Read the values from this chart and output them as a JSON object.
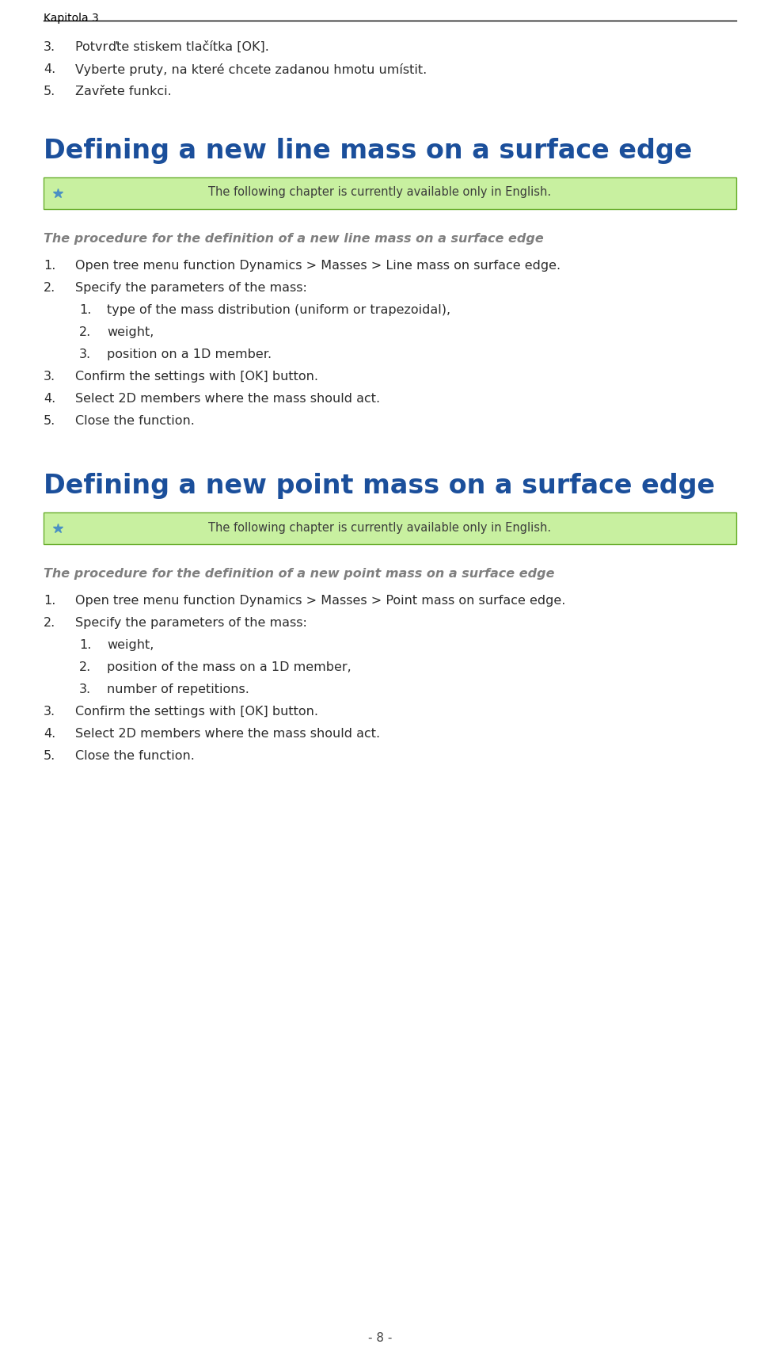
{
  "bg_color": "#ffffff",
  "header_text": "Kapitola 3",
  "header_line_color": "#000000",
  "page_number": "- 8 -",
  "section1": {
    "intro_items": [
      {
        "num": "3.",
        "text": "Potvrď te stiskem tlač í tka [OK]."
      },
      {
        "num": "4.",
        "text": "Vyberte pruty, na které chcete zadanou hmotu umístit."
      },
      {
        "num": "5.",
        "text": "Zavř ete funkci."
      }
    ],
    "title": "Defining a new line mass on a surface edge",
    "title_color": "#1B4F9B",
    "note_bg": "#C8F0A0",
    "note_border": "#6AAF2E",
    "note_text": "The following chapter is currently available only in English.",
    "note_text_color": "#3C3C3C",
    "procedure_italic": "The procedure for the definition of a new line mass on a surface edge",
    "procedure_color": "#7F7F7F",
    "steps": [
      {
        "num": "1.",
        "text": "Open tree menu function Dynamics > Masses > Line mass on surface edge."
      },
      {
        "num": "2.",
        "text": "Specify the parameters of the mass:"
      }
    ],
    "substeps": [
      {
        "num": "1.",
        "text": "type of the mass distribution (uniform or trapezoidal),"
      },
      {
        "num": "2.",
        "text": "weight,"
      },
      {
        "num": "3.",
        "text": "position on a 1D member."
      }
    ],
    "final_steps": [
      {
        "num": "3.",
        "text": "Confirm the settings with [OK] button."
      },
      {
        "num": "4.",
        "text": "Select 2D members where the mass should act."
      },
      {
        "num": "5.",
        "text": "Close the function."
      }
    ]
  },
  "section2": {
    "title": "Defining a new point mass on a surface edge",
    "title_color": "#1B4F9B",
    "note_bg": "#C8F0A0",
    "note_border": "#6AAF2E",
    "note_text": "The following chapter is currently available only in English.",
    "note_text_color": "#3C3C3C",
    "procedure_italic": "The procedure for the definition of a new point mass on a surface edge",
    "procedure_color": "#7F7F7F",
    "steps": [
      {
        "num": "1.",
        "text": "Open tree menu function Dynamics > Masses > Point mass on surface edge."
      },
      {
        "num": "2.",
        "text": "Specify the parameters of the mass:"
      }
    ],
    "substeps": [
      {
        "num": "1.",
        "text": "weight,"
      },
      {
        "num": "2.",
        "text": "position of the mass on a 1D member,"
      },
      {
        "num": "3.",
        "text": "number of repetitions."
      }
    ],
    "final_steps": [
      {
        "num": "3.",
        "text": "Confirm the settings with [OK] button."
      },
      {
        "num": "4.",
        "text": "Select 2D members where the mass should act."
      },
      {
        "num": "5.",
        "text": "Close the function."
      }
    ]
  }
}
